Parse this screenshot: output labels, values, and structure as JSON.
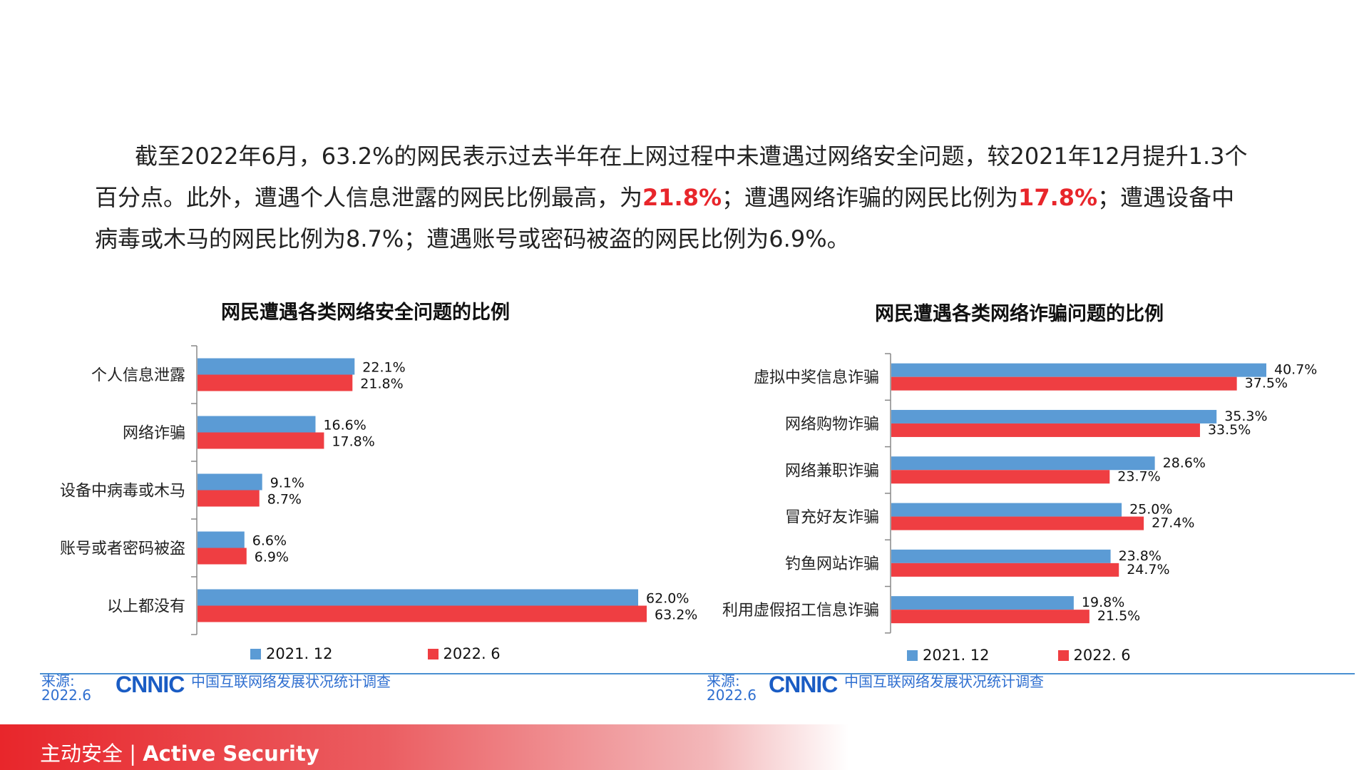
{
  "intro": {
    "p1": "截至2022年6月，63.2%的网民表示过去半年在上网过程中未遭遇过网络安全问题，较2021年12月提升1.3个百分点。此外，遭遇个人信息泄露的网民比例最高，为",
    "hl1": "21.8%",
    "p2": "；遭遇网络诈骗的网民比例为",
    "hl2": "17.8%",
    "p3": "；遭遇设备中病毒或木马的网民比例为8.7%；遭遇账号或密码被盗的网民比例为6.9%。"
  },
  "colors": {
    "series_a": "#5b9bd5",
    "series_b": "#ef3e42",
    "highlight": "#e8262b",
    "source_blue": "#2f6fd0"
  },
  "chart_data": [
    {
      "type": "bar",
      "orientation": "horizontal",
      "title": "网民遭遇各类网络安全问题的比例",
      "categories": [
        "个人信息泄露",
        "网络诈骗",
        "设备中病毒或木马",
        "账号或者密码被盗",
        "以上都没有"
      ],
      "series": [
        {
          "name": "2021. 12",
          "values": [
            22.1,
            16.6,
            9.1,
            6.6,
            62.0
          ],
          "labels": [
            "22.1%",
            "16.6%",
            "9.1%",
            "6.6%",
            "62.0%"
          ]
        },
        {
          "name": "2022. 6",
          "values": [
            21.8,
            17.8,
            8.7,
            6.9,
            63.2
          ],
          "labels": [
            "21.8%",
            "17.8%",
            "8.7%",
            "6.9%",
            "63.2%"
          ]
        }
      ],
      "xlim": [
        0,
        63.2
      ],
      "legend": "bottom"
    },
    {
      "type": "bar",
      "orientation": "horizontal",
      "title": "网民遭遇各类网络诈骗问题的比例",
      "categories": [
        "虚拟中奖信息诈骗",
        "网络购物诈骗",
        "网络兼职诈骗",
        "冒充好友诈骗",
        "钓鱼网站诈骗",
        "利用虚假招工信息诈骗"
      ],
      "series": [
        {
          "name": "2021. 12",
          "values": [
            40.7,
            35.3,
            28.6,
            25.0,
            23.8,
            19.8
          ],
          "labels": [
            "40.7%",
            "35.3%",
            "28.6%",
            "25.0%",
            "23.8%",
            "19.8%"
          ]
        },
        {
          "name": "2022. 6",
          "values": [
            37.5,
            33.5,
            23.7,
            27.4,
            24.7,
            21.5
          ],
          "labels": [
            "37.5%",
            "33.5%",
            "23.7%",
            "27.4%",
            "24.7%",
            "21.5%"
          ]
        }
      ],
      "xlim": [
        0,
        40.7
      ],
      "legend": "bottom"
    }
  ],
  "source": {
    "label": "来源:",
    "date": "2022.6",
    "logo": "CNNIC",
    "org": "中国互联网络发展状况统计调查"
  },
  "footer": {
    "cn": "主动安全",
    "sep": "|",
    "en": "Active Security"
  }
}
